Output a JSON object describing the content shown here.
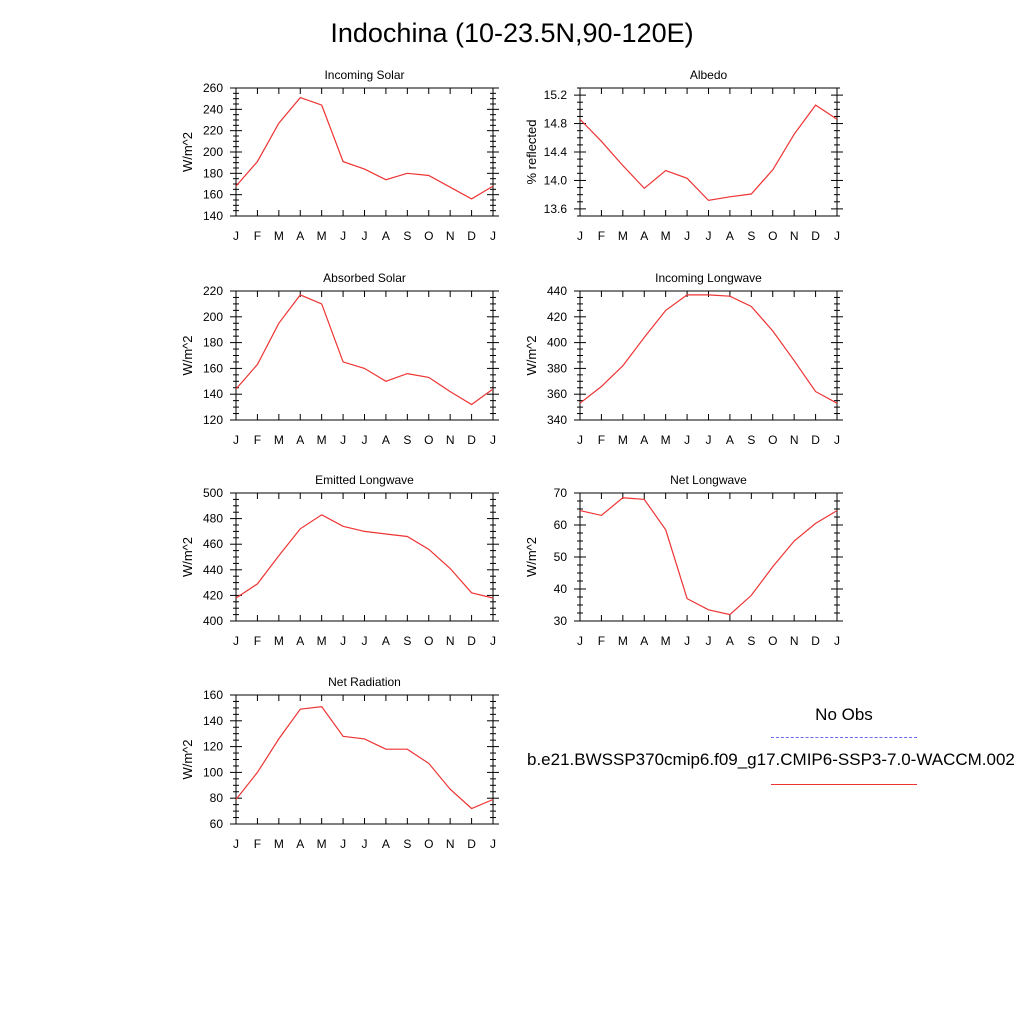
{
  "title": "Indochina (10-23.5N,90-120E)",
  "legend": {
    "obs_label": "No Obs",
    "model_label": "b.e21.BWSSP370cmip6.f09_g17.CMIP6-SSP3-7.0-WACCM.002",
    "obs_color": "#6a6af0",
    "model_color": "#ee3333"
  },
  "chart_data": [
    {
      "type": "line",
      "title": "Incoming Solar",
      "ylabel": "W/m^2",
      "x": [
        "J",
        "F",
        "M",
        "A",
        "M",
        "J",
        "J",
        "A",
        "S",
        "O",
        "N",
        "D",
        "J"
      ],
      "ylim": [
        140,
        260
      ],
      "yticks": [
        140,
        160,
        180,
        200,
        220,
        240,
        260
      ],
      "ytick_labels": [
        "140",
        "160",
        "180",
        "200",
        "220",
        "240",
        "260"
      ],
      "series": [
        {
          "values": [
            168,
            191,
            227,
            251,
            244,
            191,
            184,
            174,
            180,
            178,
            167,
            156,
            168
          ]
        }
      ]
    },
    {
      "type": "line",
      "title": "Albedo",
      "ylabel": "% reflected",
      "x": [
        "J",
        "F",
        "M",
        "A",
        "M",
        "J",
        "J",
        "A",
        "S",
        "O",
        "N",
        "D",
        "J"
      ],
      "ylim": [
        13.5,
        15.3
      ],
      "yticks": [
        13.6,
        14.0,
        14.4,
        14.8,
        15.2
      ],
      "ytick_labels": [
        "13.6",
        "14.0",
        "14.4",
        "14.8",
        "15.2"
      ],
      "series": [
        {
          "values": [
            14.86,
            14.55,
            14.21,
            13.89,
            14.14,
            14.03,
            13.72,
            13.77,
            13.81,
            14.15,
            14.65,
            15.06,
            14.86
          ]
        }
      ]
    },
    {
      "type": "line",
      "title": "Absorbed Solar",
      "ylabel": "W/m^2",
      "x": [
        "J",
        "F",
        "M",
        "A",
        "M",
        "J",
        "J",
        "A",
        "S",
        "O",
        "N",
        "D",
        "J"
      ],
      "ylim": [
        120,
        220
      ],
      "yticks": [
        120,
        140,
        160,
        180,
        200,
        220
      ],
      "ytick_labels": [
        "120",
        "140",
        "160",
        "180",
        "200",
        "220"
      ],
      "series": [
        {
          "values": [
            144,
            163,
            195,
            217,
            210,
            165,
            160,
            150,
            156,
            153,
            142,
            132,
            144
          ]
        }
      ]
    },
    {
      "type": "line",
      "title": "Incoming Longwave",
      "ylabel": "W/m^2",
      "x": [
        "J",
        "F",
        "M",
        "A",
        "M",
        "J",
        "J",
        "A",
        "S",
        "O",
        "N",
        "D",
        "J"
      ],
      "ylim": [
        340,
        440
      ],
      "yticks": [
        340,
        360,
        380,
        400,
        420,
        440
      ],
      "ytick_labels": [
        "340",
        "360",
        "380",
        "400",
        "420",
        "440"
      ],
      "series": [
        {
          "values": [
            353,
            366,
            382,
            404,
            425,
            437,
            437,
            436,
            428,
            409,
            386,
            362,
            353
          ]
        }
      ]
    },
    {
      "type": "line",
      "title": "Emitted Longwave",
      "ylabel": "W/m^2",
      "x": [
        "J",
        "F",
        "M",
        "A",
        "M",
        "J",
        "J",
        "A",
        "S",
        "O",
        "N",
        "D",
        "J"
      ],
      "ylim": [
        400,
        500
      ],
      "yticks": [
        400,
        420,
        440,
        460,
        480,
        500
      ],
      "ytick_labels": [
        "400",
        "420",
        "440",
        "460",
        "480",
        "500"
      ],
      "series": [
        {
          "values": [
            418,
            429,
            451,
            472,
            483,
            474,
            470,
            468,
            466,
            456,
            441,
            422,
            418
          ]
        }
      ]
    },
    {
      "type": "line",
      "title": "Net Longwave",
      "ylabel": "W/m^2",
      "x": [
        "J",
        "F",
        "M",
        "A",
        "M",
        "J",
        "J",
        "A",
        "S",
        "O",
        "N",
        "D",
        "J"
      ],
      "ylim": [
        30,
        70
      ],
      "yticks": [
        30,
        40,
        50,
        60,
        70
      ],
      "ytick_labels": [
        "30",
        "40",
        "50",
        "60",
        "70"
      ],
      "series": [
        {
          "values": [
            64.5,
            63,
            68.5,
            68,
            58.5,
            37,
            33.5,
            32,
            38,
            47,
            55,
            60.5,
            64.5
          ]
        }
      ]
    },
    {
      "type": "line",
      "title": "Net Radiation",
      "ylabel": "W/m^2",
      "x": [
        "J",
        "F",
        "M",
        "A",
        "M",
        "J",
        "J",
        "A",
        "S",
        "O",
        "N",
        "D",
        "J"
      ],
      "ylim": [
        60,
        160
      ],
      "yticks": [
        60,
        80,
        100,
        120,
        140,
        160
      ],
      "ytick_labels": [
        "60",
        "80",
        "100",
        "120",
        "140",
        "160"
      ],
      "series": [
        {
          "values": [
            79,
            100,
            126,
            149,
            151,
            128,
            126,
            118,
            118,
            107,
            87,
            72,
            79
          ]
        }
      ]
    }
  ]
}
